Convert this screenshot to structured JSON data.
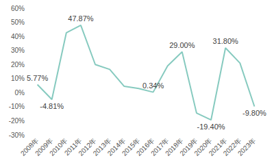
{
  "chart_data": {
    "type": "line",
    "categories": [
      "2008年",
      "2009年",
      "2010年",
      "2011年",
      "2012年",
      "2013年",
      "2014年",
      "2015年",
      "2016年",
      "2017年",
      "2018年",
      "2019年",
      "2020年",
      "2021年",
      "2022年",
      "2023年"
    ],
    "values": [
      5.77,
      -4.81,
      42.5,
      47.87,
      20,
      16.5,
      4.5,
      3,
      0.34,
      19,
      29.0,
      -14.5,
      -19.4,
      31.8,
      21,
      -9.8
    ],
    "value_labels": [
      "5.77%",
      "-4.81%",
      null,
      "47.87%",
      null,
      null,
      null,
      null,
      "0.34%",
      null,
      "29.00%",
      null,
      "-19.40%",
      "31.80%",
      null,
      "-9.80%"
    ],
    "data_labels": true,
    "color": "#86cabf",
    "marker": "none",
    "line_style": "solid",
    "grid": false,
    "ylim": [
      -30,
      60
    ],
    "yticks": [
      {
        "value": -30,
        "label": "-30%"
      },
      {
        "value": -20,
        "label": "-20%"
      },
      {
        "value": -10,
        "label": "-10%"
      },
      {
        "value": 0,
        "label": "0%"
      },
      {
        "value": 10,
        "label": "10%"
      },
      {
        "value": 20,
        "label": "20%"
      },
      {
        "value": 30,
        "label": "30%"
      },
      {
        "value": 40,
        "label": "40%"
      },
      {
        "value": 50,
        "label": "50%"
      },
      {
        "value": 60,
        "label": "60%"
      }
    ]
  }
}
